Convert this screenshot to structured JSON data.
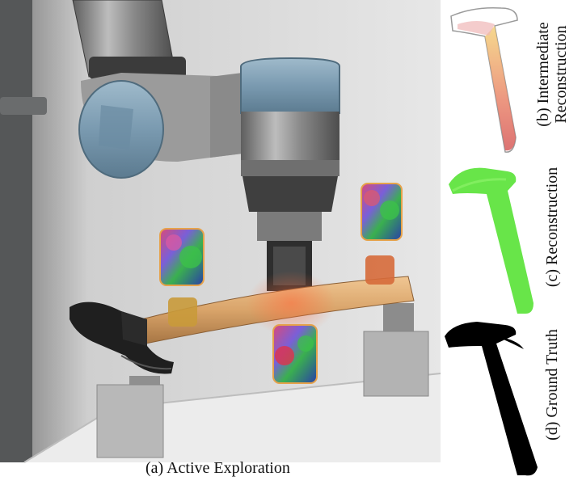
{
  "figure": {
    "caption_a": "(a) Active Exploration",
    "caption_b_line1": "(b) Intermediate",
    "caption_b_line2": "Reconstruction",
    "caption_c": "(c) Reconstruction",
    "caption_d": "(d) Ground Truth"
  },
  "colors": {
    "background": "#ffffff",
    "robot_blue": "#7f9fb4",
    "robot_metal": "#8d8d8d",
    "hammer_handle": "#d9a870",
    "hammer_head": "#1b1b1b",
    "reconstruction_green": "#5be33a",
    "ground_truth": "#000000",
    "sensor_frame": "#f2a33a"
  }
}
